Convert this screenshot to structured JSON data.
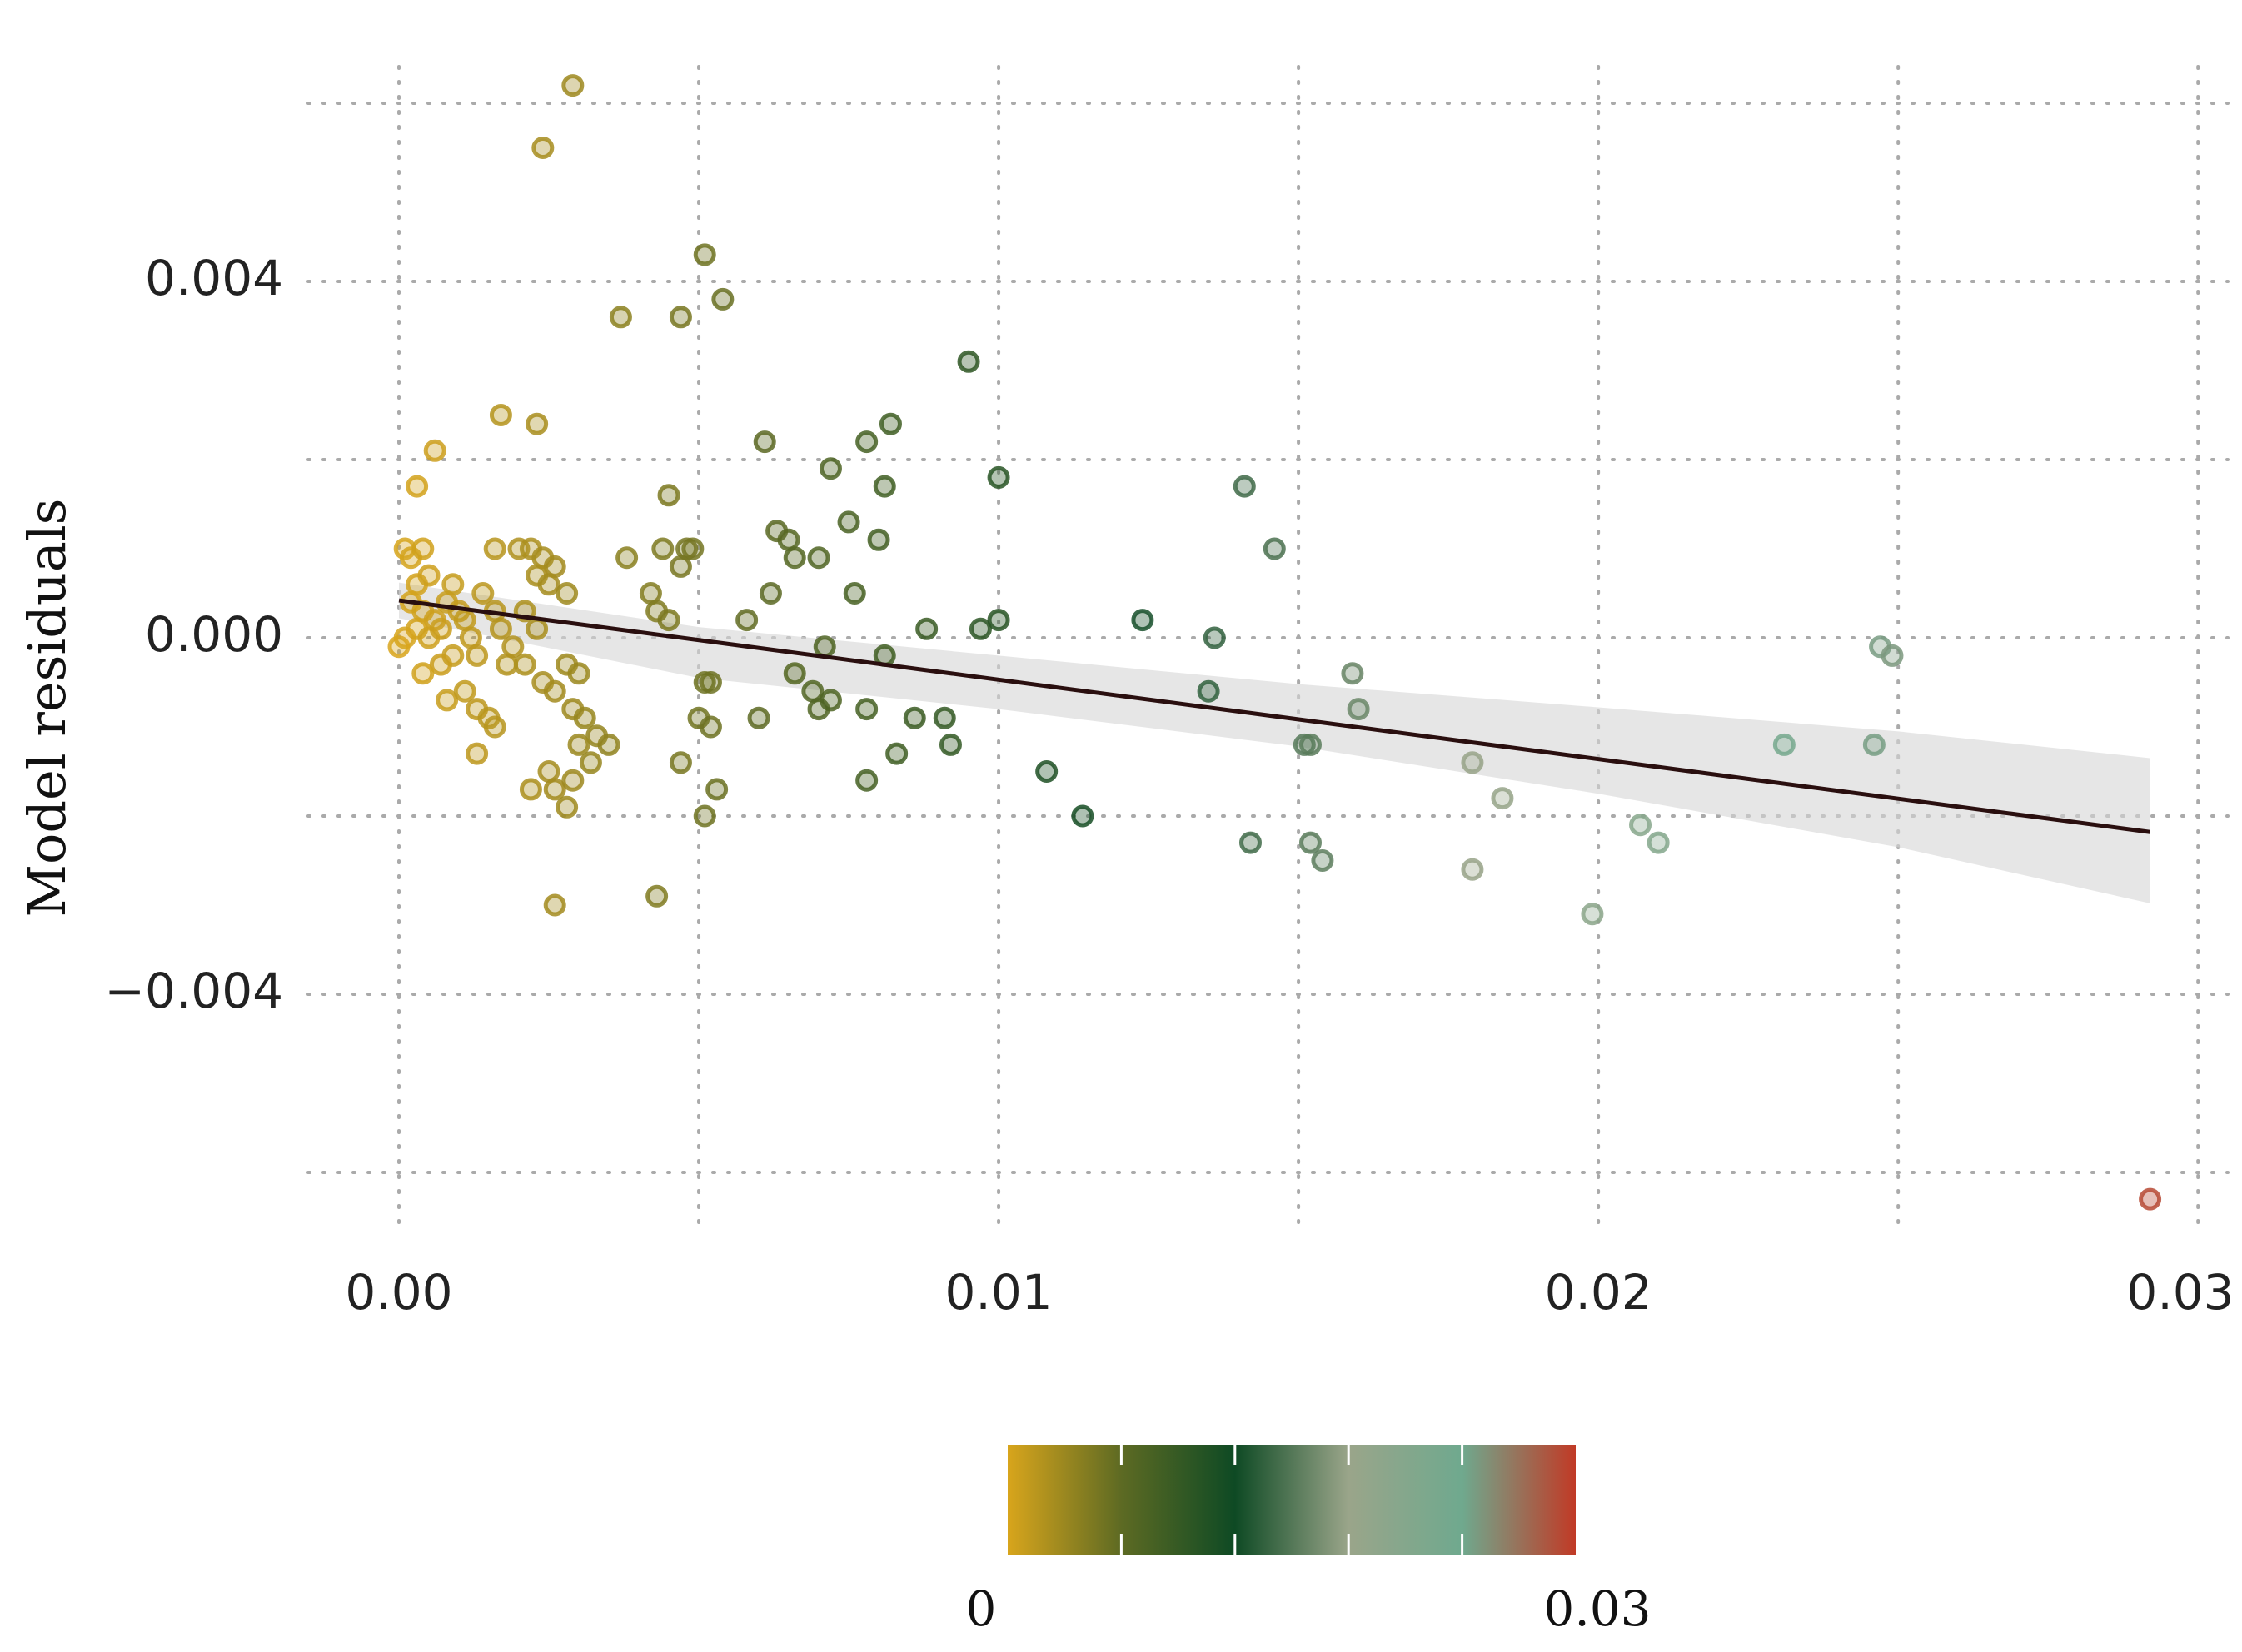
{
  "chart_data": {
    "type": "scatter",
    "title": "",
    "xlabel": "",
    "ylabel": "Model residuals",
    "xlim": [
      -0.0016,
      0.03
    ],
    "ylim": [
      -0.0069,
      0.0066
    ],
    "x_ticks": [
      0.0,
      0.01,
      0.02,
      0.03
    ],
    "x_tick_labels": [
      "0.00",
      "0.01",
      "0.02",
      "0.03"
    ],
    "y_ticks": [
      0.004,
      0.0,
      -0.004
    ],
    "y_tick_labels": [
      "0.004",
      "0.000",
      "−0.004"
    ],
    "y_minor_grid": [
      0.006,
      0.002,
      -0.002,
      -0.006
    ],
    "grid": true,
    "colorbar": {
      "min_label": "0",
      "max_label": "0.03",
      "min": 0,
      "max": 0.03,
      "colors": [
        "#d8a51c",
        "#5d6a23",
        "#0e4a24",
        "#9aa58a",
        "#6fa98e",
        "#c13a26"
      ]
    },
    "trend_line": {
      "x": [
        0.0,
        0.0292
      ],
      "y": [
        0.00042,
        -0.00218
      ],
      "color": "#2a0f0f"
    },
    "confidence_band": {
      "x": [
        0.0,
        0.005,
        0.01,
        0.015,
        0.02,
        0.025,
        0.0292
      ],
      "lower": [
        0.00022,
        -0.00045,
        -0.0008,
        -0.00122,
        -0.00175,
        -0.00235,
        -0.00298
      ],
      "upper": [
        0.00062,
        0.00012,
        -0.0002,
        -0.00052,
        -0.00078,
        -0.00105,
        -0.00135
      ]
    },
    "points": [
      {
        "x": 0.0001,
        "y": 0.001
      },
      {
        "x": 0.0002,
        "y": 0.0009
      },
      {
        "x": 0.0004,
        "y": 0.001
      },
      {
        "x": 0.0003,
        "y": 0.0006
      },
      {
        "x": 0.0005,
        "y": 0.0007
      },
      {
        "x": 0.0002,
        "y": 0.0004
      },
      {
        "x": 0.0004,
        "y": 0.0003
      },
      {
        "x": 0.0006,
        "y": 0.0002
      },
      {
        "x": 0.0003,
        "y": 0.0001
      },
      {
        "x": 0.0001,
        "y": 0.0
      },
      {
        "x": 0.0005,
        "y": 0.0
      },
      {
        "x": 0.0007,
        "y": 0.0001
      },
      {
        "x": 0.0008,
        "y": 0.0004
      },
      {
        "x": 0.0009,
        "y": 0.0006
      },
      {
        "x": 0.001,
        "y": 0.0003
      },
      {
        "x": 0.0011,
        "y": 0.0002
      },
      {
        "x": 0.0012,
        "y": 0.0
      },
      {
        "x": 0.0013,
        "y": -0.0002
      },
      {
        "x": 0.0009,
        "y": -0.0002
      },
      {
        "x": 0.0007,
        "y": -0.0003
      },
      {
        "x": 0.0004,
        "y": -0.0004
      },
      {
        "x": 0.0,
        "y": -0.0001
      },
      {
        "x": 0.0008,
        "y": -0.0007
      },
      {
        "x": 0.0011,
        "y": -0.0006
      },
      {
        "x": 0.0013,
        "y": -0.0008
      },
      {
        "x": 0.0015,
        "y": -0.0009
      },
      {
        "x": 0.0016,
        "y": -0.001
      },
      {
        "x": 0.0013,
        "y": -0.0013
      },
      {
        "x": 0.0006,
        "y": 0.0021
      },
      {
        "x": 0.0003,
        "y": 0.0017
      },
      {
        "x": 0.0014,
        "y": 0.0005
      },
      {
        "x": 0.0016,
        "y": 0.0003
      },
      {
        "x": 0.0017,
        "y": 0.0001
      },
      {
        "x": 0.0018,
        "y": -0.0003
      },
      {
        "x": 0.0016,
        "y": 0.001
      },
      {
        "x": 0.002,
        "y": 0.001
      },
      {
        "x": 0.0022,
        "y": 0.001
      },
      {
        "x": 0.0024,
        "y": 0.0009
      },
      {
        "x": 0.0026,
        "y": 0.0008
      },
      {
        "x": 0.0023,
        "y": 0.0007
      },
      {
        "x": 0.0025,
        "y": 0.0006
      },
      {
        "x": 0.0028,
        "y": 0.0005
      },
      {
        "x": 0.0021,
        "y": 0.0003
      },
      {
        "x": 0.0023,
        "y": 0.0001
      },
      {
        "x": 0.0019,
        "y": -0.0001
      },
      {
        "x": 0.0021,
        "y": -0.0003
      },
      {
        "x": 0.0024,
        "y": -0.0005
      },
      {
        "x": 0.0026,
        "y": -0.0006
      },
      {
        "x": 0.0028,
        "y": -0.0003
      },
      {
        "x": 0.003,
        "y": -0.0004
      },
      {
        "x": 0.0029,
        "y": -0.0008
      },
      {
        "x": 0.0031,
        "y": -0.0009
      },
      {
        "x": 0.0033,
        "y": -0.0011
      },
      {
        "x": 0.0035,
        "y": -0.0012
      },
      {
        "x": 0.003,
        "y": -0.0012
      },
      {
        "x": 0.0032,
        "y": -0.0014
      },
      {
        "x": 0.0025,
        "y": -0.0015
      },
      {
        "x": 0.0026,
        "y": -0.0017
      },
      {
        "x": 0.0029,
        "y": -0.0016
      },
      {
        "x": 0.0022,
        "y": -0.0017
      },
      {
        "x": 0.0028,
        "y": -0.0019
      },
      {
        "x": 0.0026,
        "y": -0.003
      },
      {
        "x": 0.0043,
        "y": -0.0029
      },
      {
        "x": 0.0029,
        "y": 0.0062
      },
      {
        "x": 0.0024,
        "y": 0.0055
      },
      {
        "x": 0.0037,
        "y": 0.0036
      },
      {
        "x": 0.0047,
        "y": 0.0036
      },
      {
        "x": 0.0051,
        "y": 0.0043
      },
      {
        "x": 0.0054,
        "y": 0.0038
      },
      {
        "x": 0.0017,
        "y": 0.0025
      },
      {
        "x": 0.0023,
        "y": 0.0024
      },
      {
        "x": 0.0045,
        "y": 0.0016
      },
      {
        "x": 0.0038,
        "y": 0.0009
      },
      {
        "x": 0.0042,
        "y": 0.0005
      },
      {
        "x": 0.0044,
        "y": 0.001
      },
      {
        "x": 0.0047,
        "y": 0.0008
      },
      {
        "x": 0.0049,
        "y": 0.001
      },
      {
        "x": 0.0048,
        "y": 0.001
      },
      {
        "x": 0.0043,
        "y": 0.0003
      },
      {
        "x": 0.0045,
        "y": 0.0002
      },
      {
        "x": 0.0051,
        "y": -0.0005
      },
      {
        "x": 0.0052,
        "y": -0.0005
      },
      {
        "x": 0.005,
        "y": -0.0009
      },
      {
        "x": 0.0052,
        "y": -0.001
      },
      {
        "x": 0.0047,
        "y": -0.0014
      },
      {
        "x": 0.0053,
        "y": -0.0017
      },
      {
        "x": 0.0051,
        "y": -0.002
      },
      {
        "x": 0.0061,
        "y": 0.0022
      },
      {
        "x": 0.0072,
        "y": 0.0019
      },
      {
        "x": 0.0078,
        "y": 0.0022
      },
      {
        "x": 0.0082,
        "y": 0.0024
      },
      {
        "x": 0.0081,
        "y": 0.0017
      },
      {
        "x": 0.0065,
        "y": 0.0011
      },
      {
        "x": 0.0063,
        "y": 0.0012
      },
      {
        "x": 0.0066,
        "y": 0.0009
      },
      {
        "x": 0.007,
        "y": 0.0009
      },
      {
        "x": 0.0075,
        "y": 0.0013
      },
      {
        "x": 0.008,
        "y": 0.0011
      },
      {
        "x": 0.0062,
        "y": 0.0005
      },
      {
        "x": 0.0058,
        "y": 0.0002
      },
      {
        "x": 0.0076,
        "y": 0.0005
      },
      {
        "x": 0.0071,
        "y": -0.0001
      },
      {
        "x": 0.0066,
        "y": -0.0004
      },
      {
        "x": 0.0069,
        "y": -0.0006
      },
      {
        "x": 0.007,
        "y": -0.0008
      },
      {
        "x": 0.0072,
        "y": -0.0007
      },
      {
        "x": 0.006,
        "y": -0.0009
      },
      {
        "x": 0.0078,
        "y": -0.0008
      },
      {
        "x": 0.0081,
        "y": -0.0002
      },
      {
        "x": 0.0086,
        "y": -0.0009
      },
      {
        "x": 0.0091,
        "y": -0.0009
      },
      {
        "x": 0.0092,
        "y": -0.0012
      },
      {
        "x": 0.0083,
        "y": -0.0013
      },
      {
        "x": 0.0078,
        "y": -0.0016
      },
      {
        "x": 0.0088,
        "y": 0.0001
      },
      {
        "x": 0.0095,
        "y": 0.0031
      },
      {
        "x": 0.01,
        "y": 0.0018
      },
      {
        "x": 0.0097,
        "y": 0.0001
      },
      {
        "x": 0.01,
        "y": 0.0002
      },
      {
        "x": 0.0108,
        "y": -0.0015
      },
      {
        "x": 0.0114,
        "y": -0.002
      },
      {
        "x": 0.0124,
        "y": 0.0002
      },
      {
        "x": 0.0136,
        "y": 0.0
      },
      {
        "x": 0.0141,
        "y": 0.0017
      },
      {
        "x": 0.0146,
        "y": 0.001
      },
      {
        "x": 0.0135,
        "y": -0.0006
      },
      {
        "x": 0.0142,
        "y": -0.0023
      },
      {
        "x": 0.0151,
        "y": -0.0012
      },
      {
        "x": 0.0152,
        "y": -0.0012
      },
      {
        "x": 0.0152,
        "y": -0.0023
      },
      {
        "x": 0.0154,
        "y": -0.0025
      },
      {
        "x": 0.0159,
        "y": -0.0004
      },
      {
        "x": 0.016,
        "y": -0.0008
      },
      {
        "x": 0.0179,
        "y": -0.0014
      },
      {
        "x": 0.0184,
        "y": -0.0018
      },
      {
        "x": 0.0179,
        "y": -0.0026
      },
      {
        "x": 0.0199,
        "y": -0.0031
      },
      {
        "x": 0.0207,
        "y": -0.0021
      },
      {
        "x": 0.021,
        "y": -0.0023
      },
      {
        "x": 0.0231,
        "y": -0.0012
      },
      {
        "x": 0.0246,
        "y": -0.0012
      },
      {
        "x": 0.0247,
        "y": -0.0001
      },
      {
        "x": 0.0249,
        "y": -0.0002
      },
      {
        "x": 0.0292,
        "y": -0.0063
      }
    ]
  }
}
